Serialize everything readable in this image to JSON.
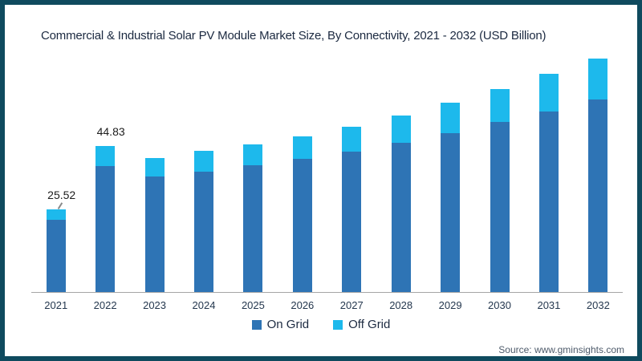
{
  "frame": {
    "border_color": "#0f4a5e",
    "background": "#ffffff"
  },
  "title": "Commercial & Industrial Solar PV Module Market Size, By Connectivity, 2021 - 2032 (USD Billion)",
  "legend": {
    "items": [
      {
        "label": "On Grid",
        "color": "#2e74b5"
      },
      {
        "label": "Off Grid",
        "color": "#1db9ec"
      }
    ]
  },
  "source": "Source: www.gminsights.com",
  "chart_data": {
    "type": "bar",
    "stacked": true,
    "title": "Commercial & Industrial Solar PV Module Market Size, By Connectivity, 2021 - 2032 (USD Billion)",
    "categories": [
      "2021",
      "2022",
      "2023",
      "2024",
      "2025",
      "2026",
      "2027",
      "2028",
      "2029",
      "2030",
      "2031",
      "2032"
    ],
    "series": [
      {
        "name": "On Grid",
        "color": "#2e74b5",
        "values": [
          22.1,
          38.7,
          35.5,
          37.1,
          38.9,
          41.0,
          43.2,
          45.8,
          48.9,
          52.2,
          55.6,
          59.3
        ]
      },
      {
        "name": "Off Grid",
        "color": "#1db9ec",
        "values": [
          3.4,
          6.1,
          5.7,
          6.2,
          6.6,
          6.9,
          7.7,
          8.5,
          9.2,
          10.3,
          11.4,
          12.6
        ]
      }
    ],
    "totals": [
      25.52,
      44.83,
      41.2,
      43.3,
      45.5,
      47.9,
      50.9,
      54.3,
      58.1,
      62.5,
      67.0,
      71.9
    ],
    "data_labels": [
      {
        "index": 0,
        "text": "25.52",
        "leader": true
      },
      {
        "index": 1,
        "text": "44.83",
        "leader": false
      }
    ],
    "xlabel": "",
    "ylabel": "",
    "ylim": [
      0,
      74
    ],
    "grid": false,
    "y_axis_shown": false,
    "legend_position": "bottom",
    "axis_color": "#a6a6a6",
    "tick_label_color": "#24374e"
  }
}
